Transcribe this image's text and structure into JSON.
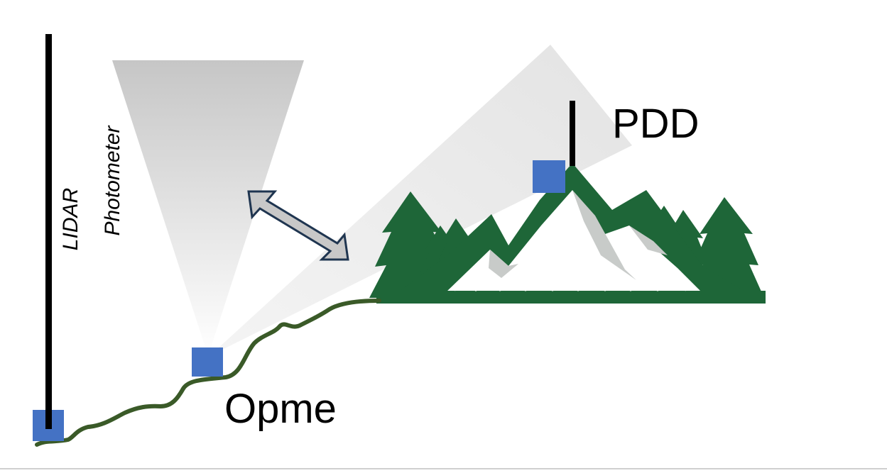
{
  "labels": {
    "lidar": "LIDAR",
    "photometer": "Photometer",
    "pdd": "PDD",
    "opme": "Opme"
  },
  "icons": {
    "site_marker": "blue-square-icon",
    "mountain_logo": "mountain-forest-icon",
    "link_arrow": "double-arrow-icon"
  },
  "colors": {
    "site_marker": "#4472c4",
    "forest": "#1e6638",
    "terrain": "#3a5a28",
    "beam": "#cfcfcf",
    "arrow_fill": "#c8c8c8",
    "arrow_outline": "#1f3550"
  }
}
